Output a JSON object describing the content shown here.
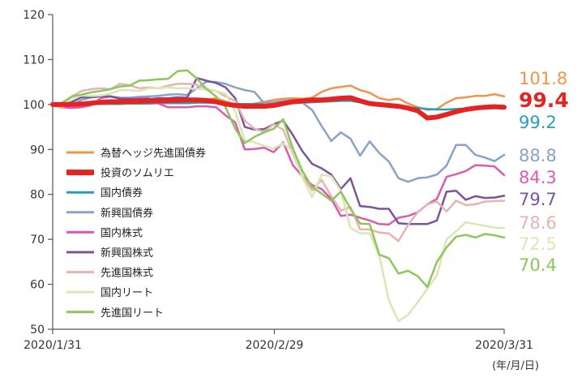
{
  "chart_data": {
    "type": "line",
    "x_ticks": [
      "2020/1/31",
      "2020/2/29",
      "2020/3/31"
    ],
    "x_unit": "(年/月/日)",
    "ylim": [
      50,
      120
    ],
    "y_ticks": [
      50,
      60,
      70,
      80,
      90,
      100,
      110,
      120
    ],
    "legend_position": "lower-left",
    "series": [
      {
        "name": "為替ヘッジ先進国債券",
        "color": "#f0944a",
        "width": 2.5,
        "end_label": "101.8",
        "bold": false,
        "values": [
          100,
          100,
          100,
          99.8,
          100.2,
          100.4,
          100.4,
          100.3,
          100.5,
          100.2,
          100.5,
          100.6,
          100.6,
          100.6,
          100.7,
          100.9,
          101.1,
          101.4,
          100.7,
          100,
          99.8,
          100.2,
          100.6,
          101,
          101.3,
          101.4,
          101.3,
          101.5,
          102.8,
          103.6,
          103.9,
          104.2,
          103.2,
          102.6,
          101.4,
          101,
          101.3,
          100.2,
          99.4,
          98.8,
          99,
          100.4,
          101.4,
          101.6,
          101.9,
          101.9,
          102.3,
          101.8
        ]
      },
      {
        "name": "投資のソムリエ",
        "color": "#e52320",
        "width": 6,
        "end_label": "99.4",
        "bold": true,
        "values": [
          100,
          100,
          100,
          100.1,
          100.3,
          100.5,
          100.6,
          100.6,
          100.7,
          100.7,
          100.8,
          100.8,
          100.9,
          100.9,
          101,
          101,
          100.9,
          100.6,
          100.1,
          99.8,
          99.6,
          99.6,
          99.6,
          99.8,
          100.2,
          100.6,
          100.8,
          101,
          101,
          101.2,
          101.4,
          101.5,
          100.8,
          100.2,
          100,
          99.8,
          99.6,
          99.2,
          98.6,
          97,
          97.2,
          97.8,
          98.4,
          98.9,
          99.2,
          99.4,
          99.5,
          99.4
        ]
      },
      {
        "name": "国内債券",
        "color": "#2a9cc0",
        "width": 2.5,
        "end_label": "99.2",
        "bold": false,
        "values": [
          100,
          100,
          100,
          100,
          100.1,
          100.1,
          100.1,
          100.1,
          100.2,
          100.2,
          100.2,
          100.3,
          100.3,
          100.3,
          100.3,
          100.4,
          100.4,
          100.4,
          100.2,
          100.1,
          100.1,
          100.1,
          100.1,
          100.1,
          100.2,
          100.3,
          100.4,
          100.5,
          100.6,
          100.7,
          100.8,
          100.8,
          100.5,
          100.2,
          100,
          99.8,
          99.6,
          99.4,
          99.2,
          99,
          98.9,
          98.9,
          99,
          99.1,
          99.2,
          99.2,
          99.2,
          99.2
        ]
      },
      {
        "name": "新興国債券",
        "color": "#89a2c8",
        "width": 2.5,
        "end_label": "88.8",
        "bold": false,
        "values": [
          100,
          99.8,
          100,
          101,
          101.6,
          102,
          101.8,
          101.5,
          101.5,
          101.7,
          101.8,
          101.9,
          102.2,
          102.3,
          102.1,
          103.6,
          105.1,
          105,
          104.6,
          103.8,
          103.2,
          102.8,
          100.3,
          100.5,
          100.8,
          101,
          100.4,
          98.8,
          95.2,
          91.9,
          93.8,
          92.4,
          88.6,
          91.8,
          89.2,
          87.3,
          83.6,
          82.8,
          83.6,
          83.8,
          84.4,
          86.4,
          91,
          91,
          88.8,
          88.2,
          87.4,
          88.8
        ]
      },
      {
        "name": "国内株式",
        "color": "#dc5ab0",
        "width": 2.5,
        "end_label": "84.3",
        "bold": false,
        "values": [
          100,
          99.4,
          99.2,
          99.4,
          99.8,
          101.4,
          101.8,
          101.4,
          101.2,
          101.4,
          101.4,
          100.2,
          99.4,
          99.4,
          99.4,
          99.6,
          99.6,
          99.4,
          97.6,
          96,
          90,
          90.1,
          90.4,
          89.4,
          91.6,
          86.5,
          84,
          82.1,
          81.2,
          79,
          75.2,
          75.5,
          74.8,
          74.2,
          73.4,
          73.3,
          74.8,
          75.2,
          76,
          77.8,
          79,
          83.9,
          84.5,
          85.2,
          86.5,
          86.4,
          86.2,
          84.3
        ]
      },
      {
        "name": "新興国株式",
        "color": "#7a559c",
        "width": 2.5,
        "end_label": "79.7",
        "bold": false,
        "values": [
          100,
          99.8,
          100.6,
          101.6,
          101.6,
          101.8,
          101.8,
          101.3,
          101.3,
          101.2,
          101.2,
          101.4,
          101.4,
          101.6,
          101.5,
          105.9,
          105.3,
          104.8,
          103.8,
          101.4,
          95,
          94.4,
          94.5,
          95.6,
          96.4,
          93.2,
          89.6,
          86.8,
          85.8,
          84.4,
          81.2,
          83.6,
          77.4,
          77.2,
          76.8,
          76.8,
          73.6,
          73.4,
          73.4,
          73.4,
          74.2,
          80.6,
          80.8,
          78.8,
          79.6,
          79.2,
          79.3,
          79.7
        ]
      },
      {
        "name": "先進国株式",
        "color": "#e8b4b1",
        "width": 2.5,
        "end_label": "78.6",
        "bold": false,
        "values": [
          100,
          99.2,
          101.8,
          103,
          103.4,
          103.6,
          103.4,
          104.6,
          104.3,
          103.6,
          103.8,
          103.6,
          104.2,
          104.6,
          104.6,
          104.4,
          103.4,
          103,
          101.8,
          100.8,
          96.4,
          94.6,
          93.9,
          95.6,
          94.4,
          89.1,
          84,
          80.9,
          83.2,
          79.6,
          76.4,
          77.2,
          72.2,
          72.2,
          71.5,
          71.3,
          69.6,
          73.2,
          76,
          77.8,
          78.4,
          76.2,
          78.6,
          77.6,
          77.8,
          78.4,
          78.5,
          78.6
        ]
      },
      {
        "name": "国内リート",
        "color": "#dbe5b5",
        "width": 2.5,
        "end_label": "72.5",
        "bold": false,
        "values": [
          100,
          100.2,
          101.4,
          102,
          101.9,
          102,
          102.4,
          103.2,
          103.2,
          103,
          103.6,
          103.6,
          103.8,
          103.6,
          103.6,
          103.5,
          103.3,
          103,
          102.4,
          98.4,
          92,
          91.6,
          90.8,
          90.2,
          91.4,
          89.6,
          83.8,
          79.4,
          84.4,
          84,
          80.8,
          72.5,
          71.4,
          71.3,
          66.4,
          56.4,
          51.8,
          53.2,
          56,
          59,
          62,
          70,
          71.8,
          73.8,
          73.4,
          73,
          72.6,
          72.5
        ]
      },
      {
        "name": "先進国リート",
        "color": "#8bc75a",
        "width": 2.5,
        "end_label": "70.4",
        "bold": false,
        "values": [
          100,
          100.4,
          101.8,
          102.2,
          102.7,
          103,
          103.4,
          104,
          104.2,
          105.3,
          105.4,
          105.6,
          105.7,
          107.4,
          107.6,
          105.8,
          103.5,
          101.8,
          99.4,
          94.6,
          91.4,
          92.8,
          93.8,
          94.6,
          96.7,
          90.2,
          85.2,
          81.6,
          80.2,
          78.6,
          80.6,
          76.8,
          73.5,
          73.4,
          66.6,
          65.8,
          62.4,
          63,
          61.8,
          59.4,
          65,
          68.2,
          70.6,
          71,
          70.4,
          71.2,
          70.9,
          70.4
        ]
      }
    ]
  }
}
